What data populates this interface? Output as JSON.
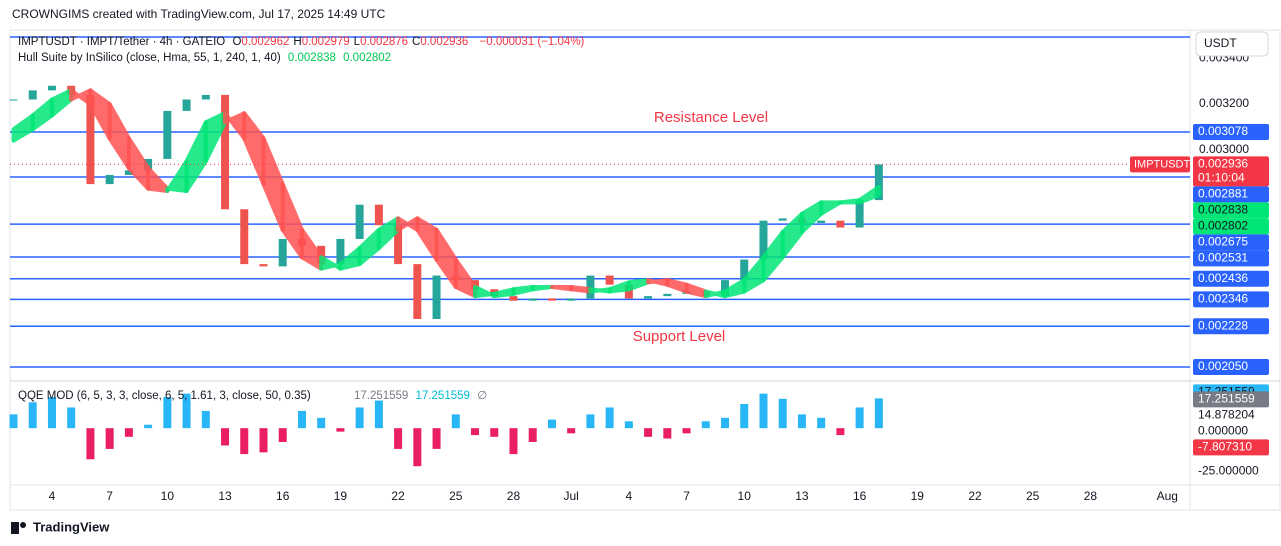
{
  "header": "CROWNGIMS created with TradingView.com, Jul 17, 2025 14:49 UTC",
  "footer": "TradingView",
  "chart_data": [
    {
      "type": "candlestick",
      "symbol": "IMPTUSDT · IMPT/Tether · 4h · GATEIO",
      "ohlc": [
        {
          "label": "O",
          "value": "0.002962"
        },
        {
          "label": "H",
          "value": "0.002979"
        },
        {
          "label": "L",
          "value": "0.002876"
        },
        {
          "label": "C",
          "value": "0.002936"
        }
      ],
      "change": "−0.000031 (−1.04%)",
      "currency": "USDT",
      "price_label": {
        "symbol": "IMPTUSDT",
        "countdown": "01:10:04"
      },
      "categories": [
        null,
        null,
        "4",
        null,
        null,
        "7",
        null,
        null,
        "10",
        null,
        null,
        "13",
        null,
        null,
        "16",
        null,
        null,
        "19",
        null,
        null,
        "22",
        null,
        null,
        "25",
        null,
        null,
        "28",
        null,
        null,
        "Jul",
        null,
        null,
        "4",
        null,
        null,
        "7",
        null,
        null,
        "10",
        null,
        null,
        "13",
        null,
        null,
        "16",
        null,
        null,
        "19",
        null,
        null,
        "22",
        null,
        null,
        "25",
        null,
        null,
        "28",
        null,
        null,
        null,
        "Aug"
      ],
      "series": [
        {
          "name": "IMPTUSDT",
          "up_color": "#26a69a",
          "down_color": "#ef5350",
          "values": [
            0.00322,
            0.00326,
            0.00328,
            0.00324,
            0.00285,
            0.00289,
            0.00291,
            0.00296,
            0.00317,
            0.00322,
            0.00324,
            0.00274,
            0.0025,
            0.00249,
            0.00261,
            0.00258,
            0.0025,
            0.00261,
            0.00276,
            0.00267,
            0.0025,
            0.00226,
            0.00245,
            0.00243,
            0.00239,
            0.00236,
            0.00234,
            0.00235,
            0.00234,
            0.00235,
            0.00245,
            0.00241,
            0.00235,
            0.00236,
            0.00237,
            0.00238,
            0.00236,
            0.00243,
            0.00252,
            0.00269,
            0.0027,
            0.00268,
            0.00269,
            0.00266,
            0.00278,
            0.002936,
            null,
            null,
            null,
            null,
            null,
            null,
            null,
            null,
            null,
            null,
            null,
            null,
            null,
            null,
            null
          ]
        }
      ],
      "hull": {
        "name": "Hull Suite by InSilico (close, Hma, 55, 1, 240, 1, 40)",
        "up_color": "#00e676",
        "down_color": "#ff5252",
        "series": [
          {
            "values": [
              0.00309,
              0.00315,
              0.00322,
              0.00326,
              0.0032,
              0.00305,
              0.00292,
              0.00283,
              0.00282,
              0.00295,
              0.00312,
              0.00316,
              0.00305,
              0.00285,
              0.00265,
              0.00253,
              0.00248,
              0.0025,
              0.00257,
              0.00265,
              0.0027,
              0.00265,
              0.00252,
              0.0024,
              0.00236,
              0.00237,
              0.00239,
              0.0024,
              0.0024,
              0.00239,
              0.00238,
              0.00239,
              0.00242,
              0.00243,
              0.00241,
              0.00238,
              0.00236,
              0.00238,
              0.00243,
              0.00253,
              0.00264,
              0.00272,
              0.00277,
              0.00277,
              0.00278,
              0.002838,
              null,
              null,
              null,
              null,
              null,
              null,
              null,
              null,
              null,
              null,
              null,
              null,
              null,
              null,
              null
            ]
          },
          {
            "values": [
              0.00304,
              0.00309,
              0.00315,
              0.00322,
              0.00326,
              0.0032,
              0.00305,
              0.00292,
              0.00283,
              0.00282,
              0.00295,
              0.00312,
              0.00316,
              0.00305,
              0.00285,
              0.00265,
              0.00253,
              0.00248,
              0.0025,
              0.00257,
              0.00265,
              0.0027,
              0.00265,
              0.00252,
              0.0024,
              0.00236,
              0.00237,
              0.00239,
              0.0024,
              0.0024,
              0.00239,
              0.00238,
              0.00239,
              0.00242,
              0.00243,
              0.00241,
              0.00238,
              0.00236,
              0.00238,
              0.00243,
              0.00253,
              0.00264,
              0.00272,
              0.00277,
              0.00277,
              0.002802,
              null,
              null,
              null,
              null,
              null,
              null,
              null,
              null,
              null,
              null,
              null,
              null,
              null,
              null,
              null
            ]
          }
        ]
      },
      "levels": [
        0.003078,
        0.002881,
        0.002675,
        0.002531,
        0.002436,
        0.002346,
        0.002228,
        {
          "value": 0.00205,
          "label": "0.002050"
        }
      ],
      "level_color": "#2962ff",
      "annotations": [
        "Resistance Level",
        "Support Level"
      ],
      "ylim": [
        0.002015,
        0.003524
      ],
      "yticks": [
        {
          "value": 0.0034,
          "label": "0.003400"
        },
        {
          "value": 0.0032,
          "label": "0.003200"
        },
        {
          "value": 0.003,
          "label": "0.003000"
        }
      ]
    },
    {
      "type": "bar",
      "title": "QQE MOD (6, 5, 3, 3, close, 6, 5, 1.61, 3, close, 50, 0.35)",
      "symbol_empty": "∅",
      "up_color": "#29b6f6",
      "down_color": "#e91e63",
      "values": [
        8,
        15,
        18,
        12,
        -18,
        -12,
        -5,
        2,
        18,
        20,
        10,
        -10,
        -15,
        -14,
        -8,
        10,
        6,
        -2,
        12,
        16,
        -12,
        -22,
        -12,
        8,
        -4,
        -5,
        -15,
        -8,
        5,
        -3,
        8,
        12,
        4,
        -5,
        -6,
        -3,
        4,
        6,
        14,
        20,
        17,
        8,
        6,
        -4,
        12,
        17.251559,
        null,
        null,
        null,
        null,
        null,
        null,
        null,
        null,
        null,
        null,
        null,
        null,
        null,
        null,
        null
      ],
      "signal": 17.251559,
      "markers": [
        14.878204,
        {
          "value": -7.80731,
          "label": "-7.807310"
        }
      ],
      "ylim": [
        -30,
        25
      ],
      "yticks": [
        {
          "value": 0,
          "label": "0.000000"
        },
        {
          "value": -25,
          "label": "-25.000000"
        }
      ]
    }
  ]
}
